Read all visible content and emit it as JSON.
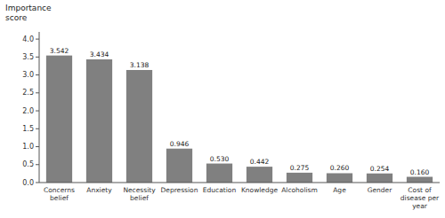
{
  "chart_data": {
    "type": "bar",
    "y_label": "Importance\nscore",
    "categories": [
      "Concerns\nbelief",
      "Anxiety",
      "Necessity\nbelief",
      "Depression",
      "Education",
      "Knowledge",
      "Alcoholism",
      "Age",
      "Gender",
      "Cost of\ndisease per\nyear"
    ],
    "values": [
      3.542,
      3.434,
      3.138,
      0.946,
      0.53,
      0.442,
      0.275,
      0.26,
      0.254,
      0.16
    ],
    "value_labels": [
      "3.542",
      "3.434",
      "3.138",
      "0.946",
      "0.530",
      "0.442",
      "0.275",
      "0.260",
      "0.254",
      "0.160"
    ],
    "data_labels": true,
    "color": "#808080",
    "ylim": [
      0,
      4.2
    ],
    "yticks": [
      {
        "value": 0,
        "label": "0.0"
      },
      0.5,
      {
        "value": 1,
        "label": "1.0"
      },
      1.5,
      {
        "value": 2,
        "label": "2.0"
      },
      2.5,
      {
        "value": 3,
        "label": "3.0"
      },
      3.5,
      {
        "value": 4,
        "label": "4.0"
      }
    ],
    "grid": false
  }
}
